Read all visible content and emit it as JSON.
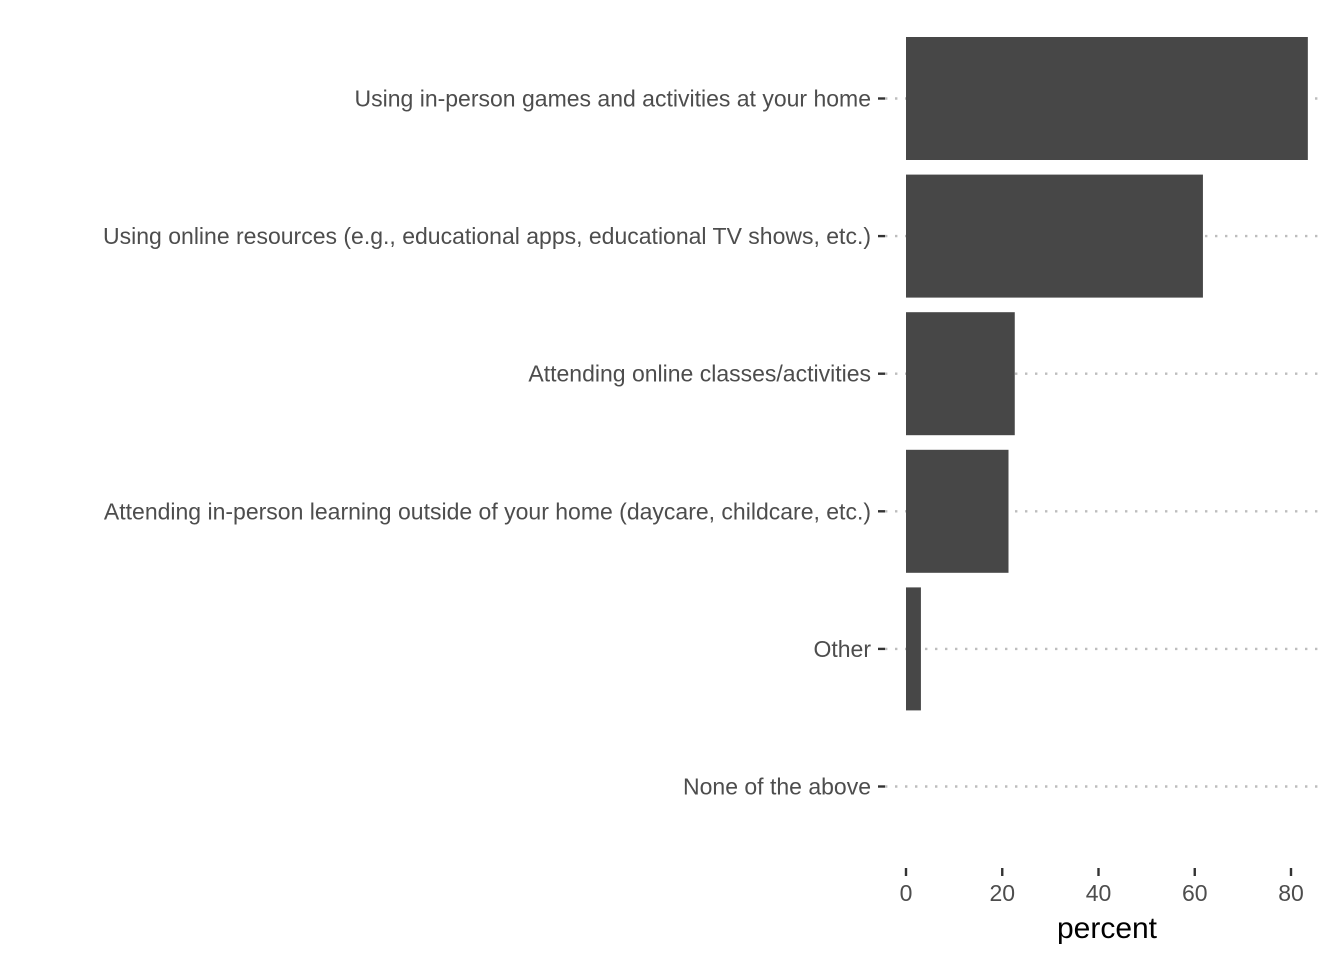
{
  "chart_data": {
    "type": "bar",
    "orientation": "horizontal",
    "categories": [
      "Using in-person games and activities at your home",
      "Using online resources (e.g., educational apps, educational TV shows, etc.)",
      "Attending online classes/activities",
      "Attending in-person learning outside of your home (daycare, childcare, etc.)",
      "Other",
      "None of the above"
    ],
    "values": [
      83.5,
      61.7,
      22.6,
      21.3,
      3.1,
      0
    ],
    "xlabel": "percent",
    "ylabel": "",
    "xlim": [
      0,
      87
    ],
    "xticks": [
      0,
      20,
      40,
      60,
      80
    ],
    "xtick_labels": [
      "0",
      "20",
      "40",
      "60",
      "80"
    ],
    "grid": "dotted horizontal guides per category",
    "colors": {
      "bar": "#474747",
      "grid": "#bdbdbd",
      "text": "#4d4d4d",
      "tick": "#333333"
    }
  }
}
